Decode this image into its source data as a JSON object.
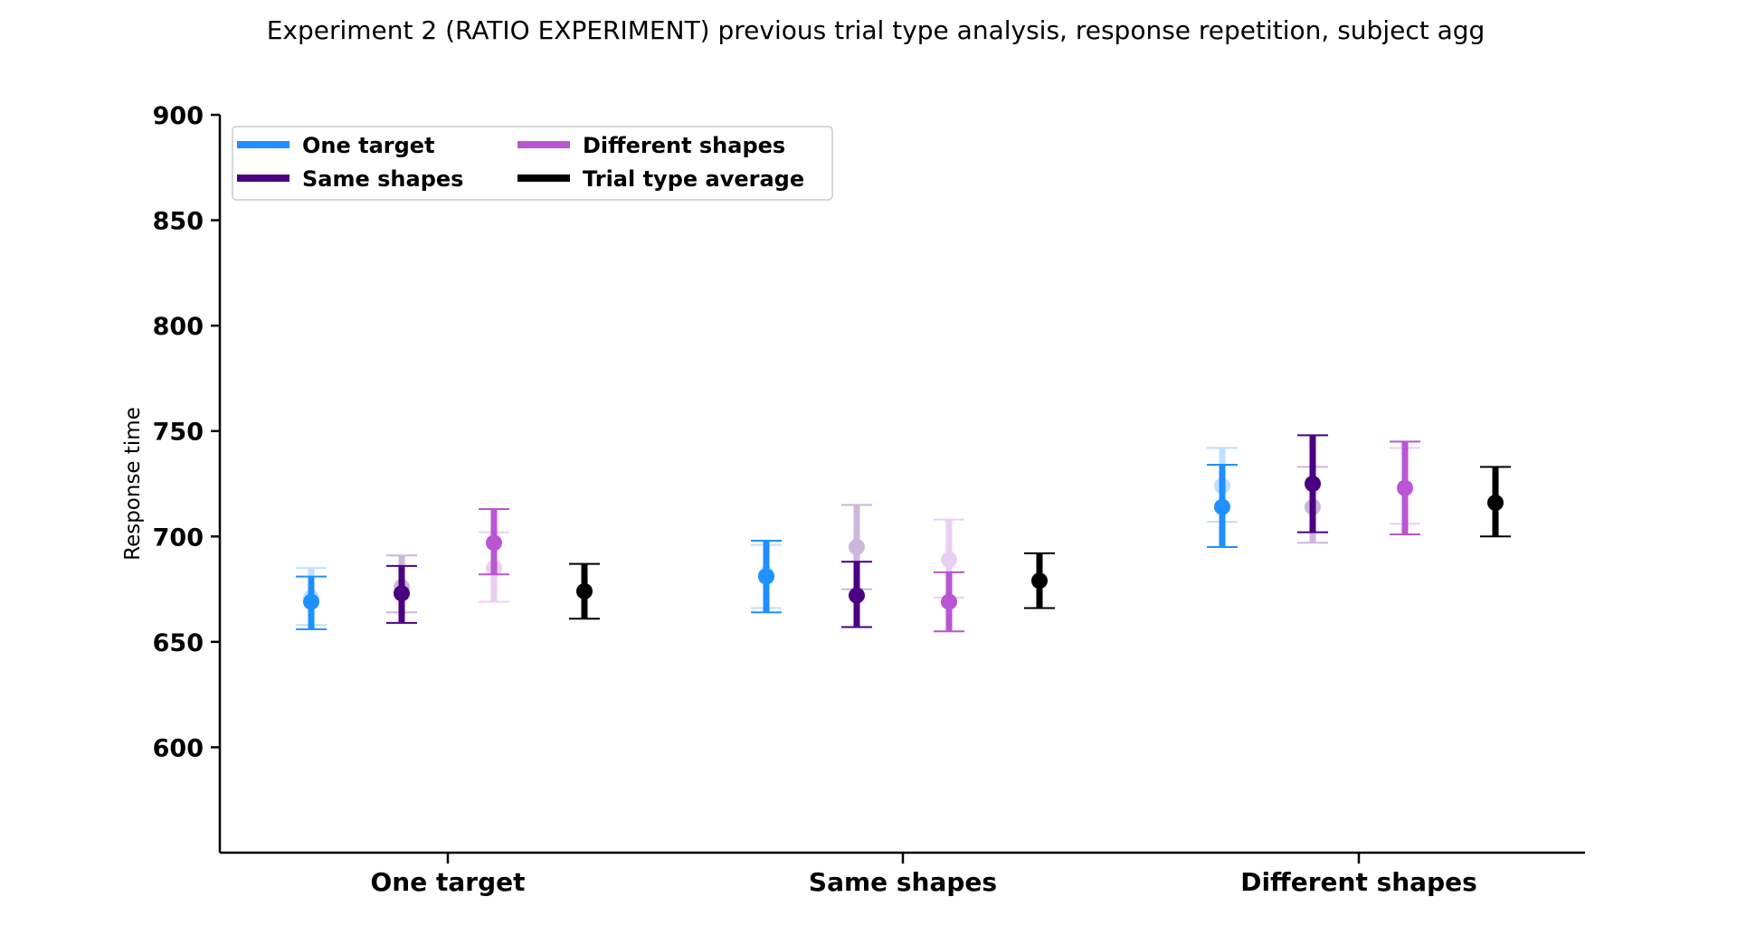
{
  "chart_data": {
    "type": "scatter",
    "title": "Experiment 2 (RATIO EXPERIMENT) previous trial type analysis, response repetition, subject agg",
    "xlabel": "",
    "ylabel": "Response time",
    "ylim": [
      550,
      900
    ],
    "yticks": [
      600,
      650,
      700,
      750,
      800,
      850,
      900
    ],
    "categories": [
      "One target",
      "Same shapes",
      "Different shapes"
    ],
    "grid": false,
    "legend_position": "top-left",
    "legend": [
      "One target",
      "Same shapes",
      "Different shapes",
      "Trial type average"
    ],
    "series": [
      {
        "name": "One target",
        "color": "#1e90ff",
        "values": [
          669,
          681,
          714
        ],
        "lower": [
          656,
          664,
          695
        ],
        "upper": [
          681,
          698,
          734
        ],
        "faded_values": [
          671,
          682,
          724
        ],
        "faded_lower": [
          658,
          666,
          707
        ],
        "faded_upper": [
          685,
          696,
          742
        ]
      },
      {
        "name": "Same shapes",
        "color": "#4b0082",
        "values": [
          673,
          672,
          725
        ],
        "lower": [
          659,
          657,
          702
        ],
        "upper": [
          686,
          688,
          748
        ],
        "faded_values": [
          676,
          695,
          714
        ],
        "faded_lower": [
          664,
          675,
          697
        ],
        "faded_upper": [
          691,
          715,
          733
        ]
      },
      {
        "name": "Different shapes",
        "color": "#ba55d3",
        "values": [
          697,
          669,
          723
        ],
        "lower": [
          682,
          655,
          701
        ],
        "upper": [
          713,
          683,
          745
        ],
        "faded_values": [
          685,
          689,
          723
        ],
        "faded_lower": [
          669,
          671,
          706
        ],
        "faded_upper": [
          702,
          708,
          742
        ]
      },
      {
        "name": "Trial type average",
        "color": "#000000",
        "values": [
          674,
          679,
          716
        ],
        "lower": [
          661,
          666,
          700
        ],
        "upper": [
          687,
          692,
          733
        ]
      }
    ]
  }
}
